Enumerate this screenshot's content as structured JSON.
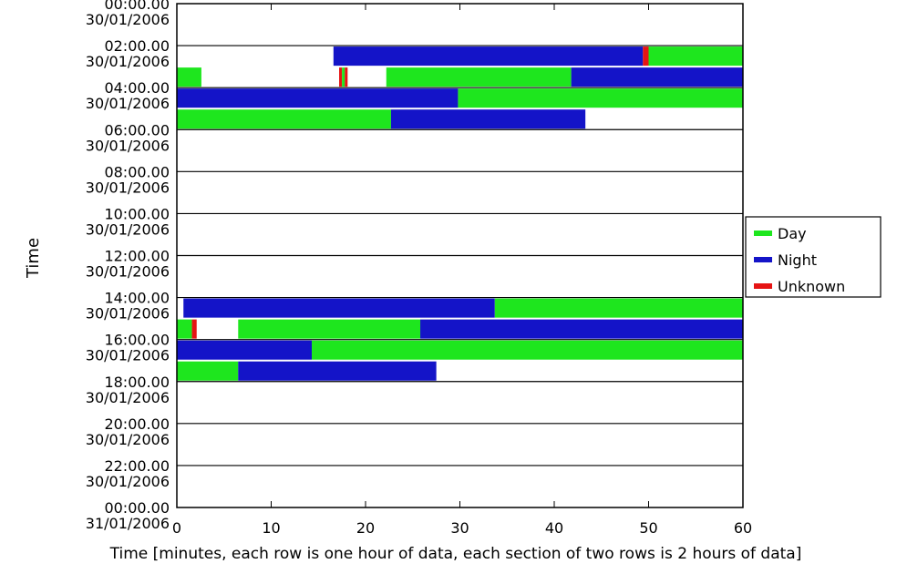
{
  "chart_data": {
    "type": "timeline",
    "title": "",
    "xlabel": "Time [minutes, each row is one hour of data, each section of two rows is 2 hours of data]",
    "ylabel": "Time",
    "xlim": [
      0,
      60
    ],
    "x_ticks": [
      0,
      10,
      20,
      30,
      40,
      50,
      60
    ],
    "y_ticks": [
      {
        "time": "00:00.00",
        "date": "30/01/2006"
      },
      {
        "time": "02:00.00",
        "date": "30/01/2006"
      },
      {
        "time": "04:00.00",
        "date": "30/01/2006"
      },
      {
        "time": "06:00.00",
        "date": "30/01/2006"
      },
      {
        "time": "08:00.00",
        "date": "30/01/2006"
      },
      {
        "time": "10:00.00",
        "date": "30/01/2006"
      },
      {
        "time": "12:00.00",
        "date": "30/01/2006"
      },
      {
        "time": "14:00.00",
        "date": "30/01/2006"
      },
      {
        "time": "16:00.00",
        "date": "30/01/2006"
      },
      {
        "time": "18:00.00",
        "date": "30/01/2006"
      },
      {
        "time": "20:00.00",
        "date": "30/01/2006"
      },
      {
        "time": "22:00.00",
        "date": "30/01/2006"
      },
      {
        "time": "00:00.00",
        "date": "31/01/2006"
      }
    ],
    "legend": {
      "position": "right",
      "entries": [
        {
          "name": "Day",
          "color": "#1ee61e"
        },
        {
          "name": "Night",
          "color": "#1414c8"
        },
        {
          "name": "Unknown",
          "color": "#e61414"
        }
      ]
    },
    "rows": [
      {
        "hour": 2,
        "segments": [
          {
            "start": 16.6,
            "end": 49.4,
            "category": "Night"
          },
          {
            "start": 49.4,
            "end": 50.0,
            "category": "Unknown"
          },
          {
            "start": 50.0,
            "end": 60.0,
            "category": "Day"
          }
        ]
      },
      {
        "hour": 3,
        "segments": [
          {
            "start": 0.0,
            "end": 2.6,
            "category": "Day"
          },
          {
            "start": 17.2,
            "end": 17.5,
            "category": "Unknown"
          },
          {
            "start": 17.5,
            "end": 17.8,
            "category": "Day"
          },
          {
            "start": 17.8,
            "end": 18.1,
            "category": "Unknown"
          },
          {
            "start": 22.2,
            "end": 41.8,
            "category": "Day"
          },
          {
            "start": 41.8,
            "end": 60.0,
            "category": "Night"
          }
        ]
      },
      {
        "hour": 4,
        "segments": [
          {
            "start": 0.0,
            "end": 29.8,
            "category": "Night"
          },
          {
            "start": 29.8,
            "end": 60.0,
            "category": "Day"
          }
        ]
      },
      {
        "hour": 5,
        "segments": [
          {
            "start": 0.0,
            "end": 22.7,
            "category": "Day"
          },
          {
            "start": 22.7,
            "end": 43.3,
            "category": "Night"
          }
        ]
      },
      {
        "hour": 14,
        "segments": [
          {
            "start": 0.7,
            "end": 33.7,
            "category": "Night"
          },
          {
            "start": 33.7,
            "end": 60.0,
            "category": "Day"
          }
        ]
      },
      {
        "hour": 15,
        "segments": [
          {
            "start": 0.0,
            "end": 1.6,
            "category": "Day"
          },
          {
            "start": 1.6,
            "end": 2.1,
            "category": "Unknown"
          },
          {
            "start": 6.5,
            "end": 25.8,
            "category": "Day"
          },
          {
            "start": 25.8,
            "end": 60.0,
            "category": "Night"
          }
        ]
      },
      {
        "hour": 16,
        "segments": [
          {
            "start": 0.0,
            "end": 14.3,
            "category": "Night"
          },
          {
            "start": 14.3,
            "end": 60.0,
            "category": "Day"
          }
        ]
      },
      {
        "hour": 17,
        "segments": [
          {
            "start": 0.0,
            "end": 6.5,
            "category": "Day"
          },
          {
            "start": 6.5,
            "end": 27.5,
            "category": "Night"
          }
        ]
      }
    ]
  }
}
